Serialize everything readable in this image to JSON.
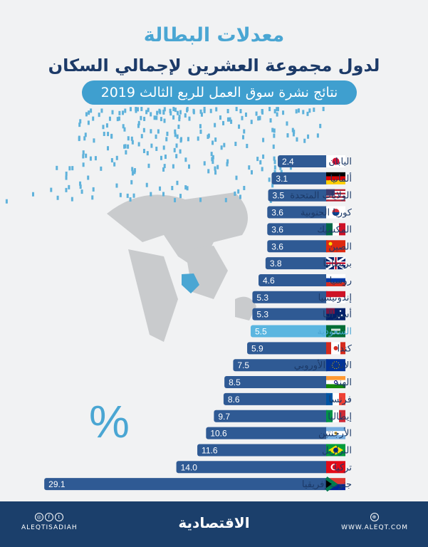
{
  "header": {
    "title": "معدلات البطالة",
    "subtitle": "لدول مجموعة العشرين لإجمالي السكان",
    "banner": "نتائج نشرة سوق العمل للربع الثالث 2019"
  },
  "unit_symbol": "%",
  "chart_data": {
    "type": "bar",
    "orientation": "horizontal",
    "unit": "%",
    "categories": [
      "اليابان",
      "ألمانيا",
      "الولايات المتحدة",
      "كوريا الجنوبية",
      "المكسيك",
      "الصين",
      "بريطانيا",
      "روسيا",
      "إندونيسيا",
      "أستراليا",
      "السعودية",
      "كندا",
      "الاتحاد الأوروبي",
      "الهند",
      "فرنسا",
      "إيطاليا",
      "الأرجنتين",
      "البرازيل",
      "تركيا",
      "جنوب إفريقيا"
    ],
    "values": [
      2.4,
      3.1,
      3.5,
      3.6,
      3.6,
      3.6,
      3.8,
      4.6,
      5.3,
      5.3,
      5.5,
      5.9,
      7.5,
      8.5,
      8.6,
      9.7,
      10.6,
      11.6,
      14.0,
      29.1
    ],
    "labels": [
      "2.4",
      "3.1",
      "3.5",
      "3.6",
      "3.6",
      "3.6",
      "3.8",
      "4.6",
      "5.3",
      "5.3",
      "5.5",
      "5.9",
      "7.5",
      "8.5",
      "8.6",
      "9.7",
      "10.6",
      "11.6",
      "14.0",
      "29.1"
    ],
    "flags": [
      "jp",
      "de",
      "us",
      "kr",
      "mx",
      "cn",
      "gb",
      "ru",
      "id",
      "au",
      "sa",
      "ca",
      "eu",
      "in",
      "fr",
      "it",
      "ar",
      "br",
      "tr",
      "za"
    ],
    "highlight": "السعودية",
    "colors": {
      "bar": "#2f5a94",
      "highlight_bar": "#5bb6e0",
      "label": "#1c3a68",
      "highlight_label": "#4aa6d3"
    }
  },
  "footer": {
    "social_handle": "ALEQTISADIAH",
    "logo_text": "الاقتصادية",
    "website": "WWW.ALEQT.COM"
  }
}
